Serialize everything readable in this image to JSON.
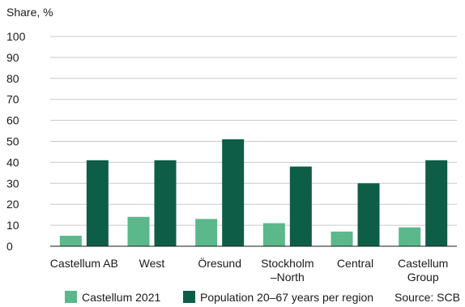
{
  "chart_data": {
    "type": "bar",
    "ylabel": "Share, %",
    "ylim": [
      0,
      100
    ],
    "yticks": [
      0,
      10,
      20,
      30,
      40,
      50,
      60,
      70,
      80,
      90,
      100
    ],
    "grid": true,
    "legend_position": "bottom",
    "categories": [
      [
        "Castellum AB"
      ],
      [
        "West"
      ],
      [
        "Öresund"
      ],
      [
        "Stockholm",
        "–North"
      ],
      [
        "Central"
      ],
      [
        "Castellum",
        "Group"
      ]
    ],
    "series": [
      {
        "name": "Castellum 2021",
        "color": "#5bb88a",
        "values": [
          5,
          14,
          13,
          11,
          7,
          9
        ]
      },
      {
        "name": "Population 20–67 years per region",
        "color": "#0e5e47",
        "values": [
          41,
          41,
          51,
          38,
          30,
          41
        ]
      }
    ],
    "source": "Source: SCB"
  }
}
